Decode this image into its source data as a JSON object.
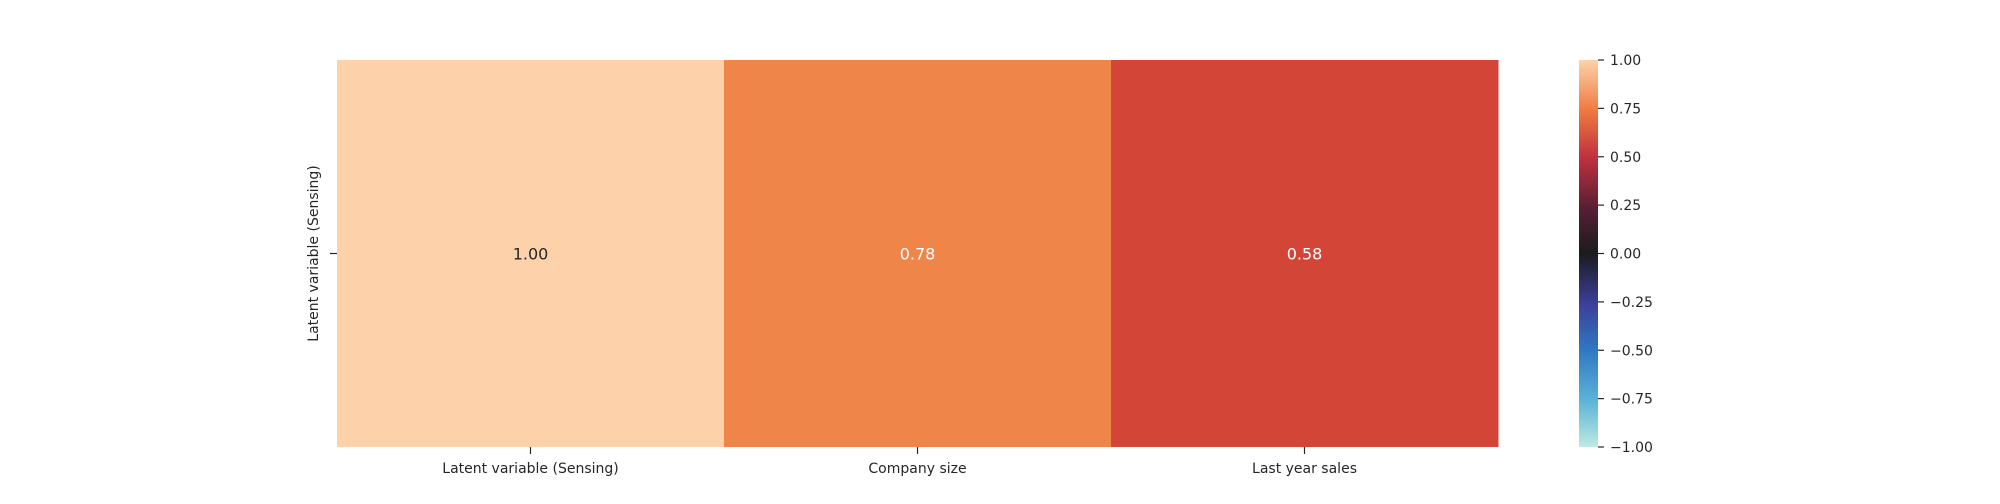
{
  "chart_data": {
    "type": "heatmap",
    "title": "",
    "rows": [
      "Latent variable (Sensing)"
    ],
    "columns": [
      "Latent variable (Sensing)",
      "Company size",
      "Last year sales"
    ],
    "values": [
      [
        1.0,
        0.78,
        0.58
      ]
    ],
    "cell_labels": [
      [
        "1.00",
        "0.78",
        "0.58"
      ]
    ],
    "colormap": "icefire",
    "vmin": -1.0,
    "vmax": 1.0,
    "colorbar": {
      "ticks": [
        1.0,
        0.75,
        0.5,
        0.25,
        0.0,
        -0.25,
        -0.5,
        -0.75,
        -1.0
      ],
      "tick_labels": [
        "1.00",
        "0.75",
        "0.50",
        "0.25",
        "0.00",
        "−0.25",
        "−0.50",
        "−0.75",
        "−1.00"
      ],
      "placement": "right"
    },
    "cell_colors": [
      "#fdd2aa",
      "#ef8548",
      "#d24537"
    ],
    "label_colors": [
      "#262626",
      "#ffffff",
      "#ffffff"
    ]
  }
}
